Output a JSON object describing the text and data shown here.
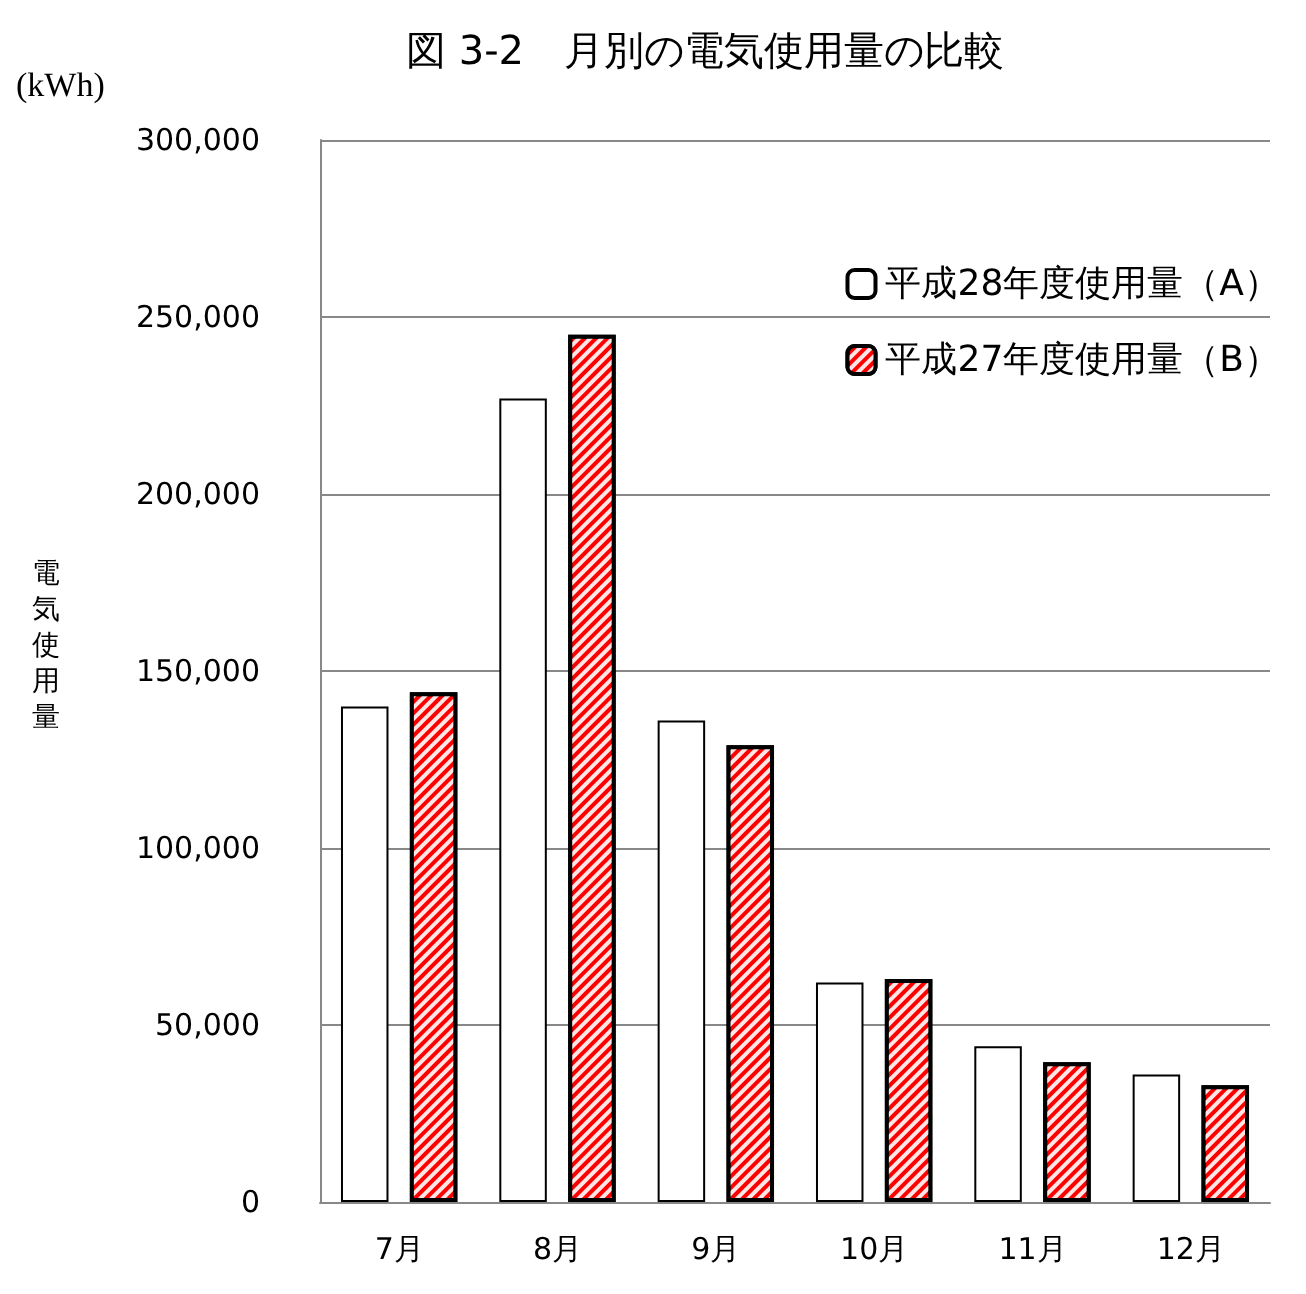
{
  "chart_data": {
    "type": "bar",
    "title": "図 3-2　月別の電気使用量の比較",
    "ylabel": "電気使用量",
    "annotations": [
      "(kWh)"
    ],
    "categories": [
      "7月",
      "8月",
      "9月",
      "10月",
      "11月",
      "12月"
    ],
    "series": [
      {
        "name": "平成28年度使用量（A）",
        "color": "#ffffff",
        "values": [
          140000,
          227000,
          136000,
          62000,
          44000,
          36000
        ]
      },
      {
        "name": "平成27年度使用量（B）",
        "color": "#ff0000",
        "values": [
          144000,
          245000,
          129000,
          63000,
          39500,
          33000
        ]
      }
    ],
    "ylim": [
      0,
      300000
    ],
    "yticks": [
      0,
      {
        "value": 50000,
        "label": "50,000"
      },
      {
        "value": 100000,
        "label": "100,000"
      },
      {
        "value": 150000,
        "label": "150,000"
      },
      {
        "value": 200000,
        "label": "200,000"
      },
      {
        "value": 250000,
        "label": "250,000"
      },
      {
        "value": 300000,
        "label": "300,000"
      }
    ],
    "grid": "y",
    "legend": "top right"
  }
}
